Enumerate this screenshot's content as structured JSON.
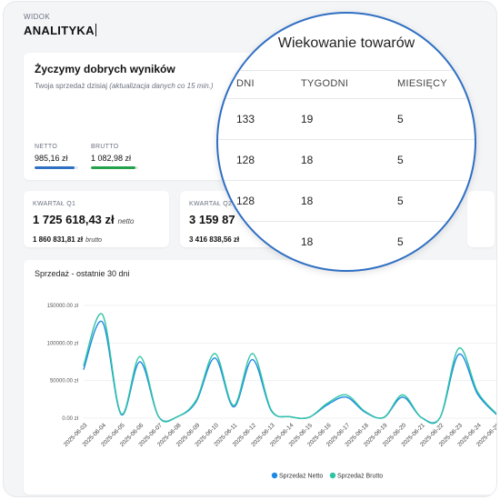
{
  "header": {
    "view_label": "WIDOK",
    "view_title": "ANALITYKA"
  },
  "welcome": {
    "title": "Życzymy dobrych wyników",
    "subtitle_main": "Twoja sprzedaż dzisiaj",
    "subtitle_note": "(aktualizacja danych co 15 min.)",
    "netto": {
      "label": "NETTO",
      "value": "985,16 zł",
      "bar_fraction": 0.92,
      "color": "#2f6fc4"
    },
    "brutto": {
      "label": "BRUTTO",
      "value": "1 082,98 zł",
      "bar_fraction": 0.95,
      "color": "#22a24a"
    }
  },
  "quarters": [
    {
      "label": "KWARTAŁ Q1",
      "net": "1 725 618,43 zł",
      "net_suffix": "netto",
      "gross": "1 860 831,81 zł",
      "gross_suffix": "brutto"
    },
    {
      "label": "KWARTAŁ Q2",
      "net": "3 159 87",
      "net_suffix": "",
      "gross": "3 416 838,56 zł",
      "gross_suffix": ""
    }
  ],
  "aging": {
    "title": "Wiekowanie towarów",
    "headers": [
      "DNI",
      "TYGODNI",
      "MIESIĘCY"
    ],
    "rows": [
      [
        "133",
        "19",
        "5"
      ],
      [
        "128",
        "18",
        "5"
      ],
      [
        "128",
        "18",
        "5"
      ],
      [
        "",
        "18",
        "5"
      ]
    ]
  },
  "chart_data": {
    "type": "line",
    "title": "Sprzedaż - ostatnie 30 dni",
    "yticks": [
      "0.00 zł",
      "50000.00 zł",
      "100000.00 zł",
      "150000.00 zł"
    ],
    "ylim": [
      0,
      150000
    ],
    "legend_position": "bottom",
    "x": [
      "2025-06-03",
      "2025-06-04",
      "2025-06-05",
      "2025-06-06",
      "2025-06-07",
      "2025-06-08",
      "2025-06-09",
      "2025-06-10",
      "2025-06-11",
      "2025-06-12",
      "2025-06-13",
      "2025-06-14",
      "2025-06-15",
      "2025-06-16",
      "2025-06-17",
      "2025-06-18",
      "2025-06-19",
      "2025-06-20",
      "2025-06-21",
      "2025-06-22",
      "2025-06-23",
      "2025-06-24",
      "2025-06-25"
    ],
    "series": [
      {
        "name": "Sprzedaż Netto",
        "color": "#1e88e5",
        "values": [
          65000,
          128000,
          5000,
          75000,
          2000,
          2000,
          22000,
          80000,
          15000,
          78000,
          10000,
          2000,
          1000,
          18000,
          28000,
          8000,
          1000,
          28000,
          1000,
          1000,
          85000,
          32000,
          5000
        ]
      },
      {
        "name": "Sprzedaż Brutto",
        "color": "#2ec4a4",
        "values": [
          70000,
          138000,
          6000,
          82000,
          2000,
          2000,
          24000,
          86000,
          17000,
          86000,
          11000,
          2000,
          1000,
          20000,
          31000,
          9000,
          1000,
          31000,
          1000,
          1000,
          93000,
          35000,
          6000
        ]
      }
    ]
  }
}
